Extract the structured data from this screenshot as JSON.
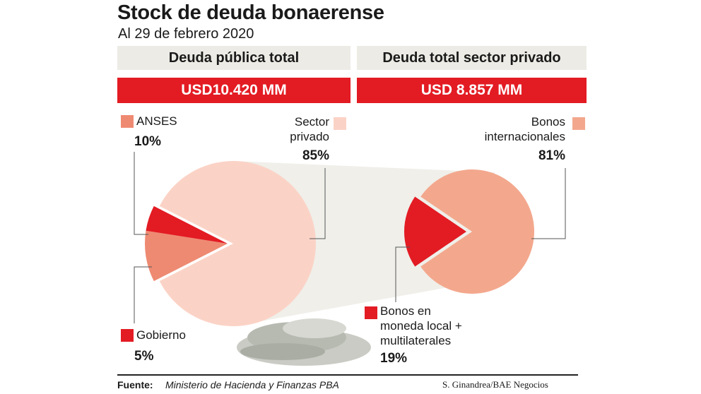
{
  "title": "Stock de deuda bonaerense",
  "subtitle": "Al 29 de febrero 2020",
  "colors": {
    "red": "#e31b23",
    "salmon": "#ee8a72",
    "light_salmon": "#fbd3c6",
    "mid_salmon": "#f3a88d",
    "header_bg": "#ecebe5",
    "connector": "#ecebe5"
  },
  "chart_data": [
    {
      "type": "pie",
      "title": "Deuda pública total",
      "total": "USD10.420 MM",
      "slices": [
        {
          "name": "Sector privado",
          "value": 85,
          "label": "85%",
          "color": "#fbd3c6"
        },
        {
          "name": "ANSES",
          "value": 10,
          "label": "10%",
          "color": "#ee8a72"
        },
        {
          "name": "Gobierno",
          "value": 5,
          "label": "5%",
          "color": "#e31b23"
        }
      ]
    },
    {
      "type": "pie",
      "title": "Deuda total sector privado",
      "total": "USD 8.857 MM",
      "slices": [
        {
          "name": "Bonos internacionales",
          "value": 81,
          "label": "81%",
          "color": "#f3a88d"
        },
        {
          "name": "Bonos en moneda local + multilaterales",
          "value": 19,
          "label": "19%",
          "color": "#e31b23"
        }
      ]
    }
  ],
  "labels": {
    "anses_name": "ANSES",
    "anses_pct": "10%",
    "privado_line1": "Sector",
    "privado_line2": "privado",
    "privado_pct": "85%",
    "gobierno_name": "Gobierno",
    "gobierno_pct": "5%",
    "bonos_int_line1": "Bonos",
    "bonos_int_line2": "internacionales",
    "bonos_int_pct": "81%",
    "bonos_local_line1": "Bonos en",
    "bonos_local_line2": "moneda local +",
    "bonos_local_line3": "multilaterales",
    "bonos_local_pct": "19%"
  },
  "footer": {
    "source_key": "Fuente:",
    "source_value": "Ministerio de Hacienda y Finanzas PBA",
    "credit": "S. Ginandrea/BAE Negocios"
  }
}
